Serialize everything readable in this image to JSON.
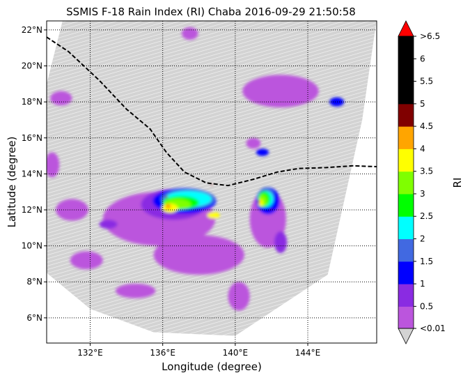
{
  "chart_data": {
    "type": "heatmap",
    "title": "SSMIS F-18 Rain Index (RI) Chaba 2016-09-29 21:50:58",
    "xlabel": "Longitude (degree)",
    "ylabel": "Latitude (degree)",
    "xlim": [
      129.6,
      147.8
    ],
    "ylim": [
      4.6,
      22.5
    ],
    "x_ticks": [
      {
        "value": 132,
        "label": "132°E"
      },
      {
        "value": 136,
        "label": "136°E"
      },
      {
        "value": 140,
        "label": "140°E"
      },
      {
        "value": 144,
        "label": "144°E"
      }
    ],
    "y_ticks": [
      {
        "value": 6,
        "label": "6°N"
      },
      {
        "value": 8,
        "label": "8°N"
      },
      {
        "value": 10,
        "label": "10°N"
      },
      {
        "value": 12,
        "label": "12°N"
      },
      {
        "value": 14,
        "label": "14°N"
      },
      {
        "value": 16,
        "label": "16°N"
      },
      {
        "value": 18,
        "label": "18°N"
      },
      {
        "value": 20,
        "label": "20°N"
      },
      {
        "value": 22,
        "label": "22°N"
      }
    ],
    "grid": "dotted",
    "swath": {
      "color": "#d3d3d3",
      "polygon": [
        [
          130.5,
          22.6
        ],
        [
          147.8,
          22.6
        ],
        [
          147.0,
          17.0
        ],
        [
          145.1,
          8.4
        ],
        [
          140.0,
          5.0
        ],
        [
          135.5,
          5.2
        ],
        [
          132.0,
          6.5
        ],
        [
          129.6,
          8.5
        ],
        [
          129.6,
          19.0
        ]
      ]
    },
    "track": {
      "name": "storm track",
      "style": "dashed",
      "points": [
        [
          129.6,
          21.6
        ],
        [
          130.8,
          20.8
        ],
        [
          132.5,
          19.2
        ],
        [
          134.0,
          17.6
        ],
        [
          135.3,
          16.5
        ],
        [
          136.2,
          15.2
        ],
        [
          137.2,
          14.1
        ],
        [
          138.4,
          13.5
        ],
        [
          139.6,
          13.35
        ],
        [
          141.0,
          13.7
        ],
        [
          142.3,
          14.1
        ],
        [
          143.5,
          14.3
        ],
        [
          145.0,
          14.35
        ],
        [
          146.5,
          14.45
        ],
        [
          147.8,
          14.4
        ]
      ]
    },
    "ri_fields": [
      {
        "level": "0.01–0.5",
        "color": "#bb55dd",
        "regions": [
          [
            142.5,
            18.6,
            4.2,
            1.8
          ],
          [
            131.0,
            12.0,
            1.8,
            1.2
          ],
          [
            135.8,
            11.5,
            6.2,
            3.0
          ],
          [
            141.8,
            11.5,
            2.0,
            3.2
          ],
          [
            138.0,
            9.5,
            5.0,
            2.2
          ],
          [
            130.4,
            18.2,
            1.2,
            0.8
          ],
          [
            129.9,
            14.5,
            0.8,
            1.4
          ],
          [
            134.5,
            7.5,
            2.2,
            0.8
          ],
          [
            140.2,
            7.2,
            1.2,
            1.6
          ],
          [
            137.5,
            21.8,
            0.9,
            0.7
          ],
          [
            131.8,
            9.2,
            1.8,
            1.0
          ],
          [
            141.0,
            15.7,
            0.8,
            0.6
          ]
        ]
      },
      {
        "level": "0.5–1",
        "color": "#8a2be2",
        "regions": [
          [
            136.6,
            12.3,
            3.6,
            1.7
          ],
          [
            142.5,
            10.2,
            0.7,
            1.2
          ],
          [
            133.0,
            11.2,
            1.0,
            0.5
          ]
        ]
      },
      {
        "level": "1–1.5",
        "color": "#0000ff",
        "regions": [
          [
            137.2,
            12.5,
            3.5,
            1.4
          ],
          [
            141.8,
            12.5,
            1.3,
            1.5
          ],
          [
            145.6,
            18.0,
            0.8,
            0.5
          ],
          [
            141.5,
            15.2,
            0.7,
            0.4
          ]
        ]
      },
      {
        "level": "1.5–2",
        "color": "#4169e1",
        "regions": [
          [
            137.4,
            12.6,
            3.0,
            1.1
          ],
          [
            141.7,
            12.7,
            0.9,
            1.1
          ]
        ]
      },
      {
        "level": "2–2.5",
        "color": "#00ffff",
        "regions": [
          [
            137.4,
            12.6,
            2.6,
            0.9
          ],
          [
            141.7,
            12.6,
            0.8,
            0.9
          ]
        ]
      },
      {
        "level": "2.5–3",
        "color": "#00ff00",
        "regions": [
          [
            137.0,
            12.4,
            2.0,
            0.75
          ],
          [
            141.6,
            12.6,
            0.7,
            0.85
          ]
        ]
      },
      {
        "level": "3–3.5",
        "color": "#7fff00",
        "regions": [
          [
            136.8,
            12.3,
            1.5,
            0.6
          ],
          [
            141.5,
            12.5,
            0.5,
            0.7
          ]
        ]
      },
      {
        "level": "3.5–4",
        "color": "#ffff00",
        "regions": [
          [
            136.4,
            12.1,
            0.9,
            0.5
          ],
          [
            138.8,
            11.7,
            0.7,
            0.35
          ],
          [
            141.4,
            12.4,
            0.3,
            0.4
          ]
        ]
      },
      {
        "level": "4–4.5",
        "color": "#ffa500",
        "regions": [
          [
            136.3,
            12.2,
            0.3,
            0.3
          ]
        ]
      },
      {
        "level": "4.5–5",
        "color": "#800000",
        "regions": [
          [
            136.2,
            12.7,
            0.12,
            0.18
          ],
          [
            141.3,
            12.45,
            0.12,
            0.18
          ],
          [
            142.0,
            12.0,
            0.08,
            0.12
          ],
          [
            138.7,
            13.4,
            0.08,
            0.1
          ]
        ]
      }
    ],
    "colorbar": {
      "label": "RI",
      "under_color": "#d3d3d3",
      "over_color": "#ff0000",
      "under_label": "<0.01",
      "over_label": ">6.5",
      "levels": [
        {
          "from": 0.01,
          "to": 0.5,
          "color": "#bb55dd"
        },
        {
          "from": 0.5,
          "to": 1,
          "color": "#8a2be2"
        },
        {
          "from": 1,
          "to": 1.5,
          "color": "#0000ff"
        },
        {
          "from": 1.5,
          "to": 2,
          "color": "#4169e1"
        },
        {
          "from": 2,
          "to": 2.5,
          "color": "#00ffff"
        },
        {
          "from": 2.5,
          "to": 3,
          "color": "#00ff00"
        },
        {
          "from": 3,
          "to": 3.5,
          "color": "#7fff00"
        },
        {
          "from": 3.5,
          "to": 4,
          "color": "#ffff00"
        },
        {
          "from": 4,
          "to": 4.5,
          "color": "#ffa500"
        },
        {
          "from": 4.5,
          "to": 5,
          "color": "#800000"
        },
        {
          "from": 5,
          "to": 5.5,
          "color": "#000000"
        },
        {
          "from": 5.5,
          "to": 6,
          "color": "#000000"
        },
        {
          "from": 6,
          "to": 6.5,
          "color": "#000000"
        }
      ],
      "tick_labels": [
        "0.5",
        "1",
        "1.5",
        "2",
        "2.5",
        "3",
        "3.5",
        "4",
        "4.5",
        "5",
        "5.5",
        "6"
      ]
    }
  }
}
